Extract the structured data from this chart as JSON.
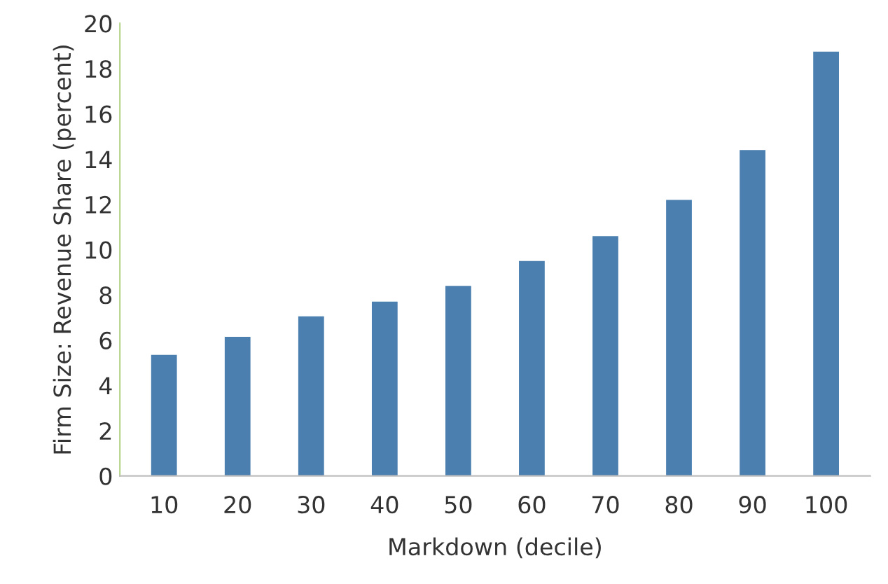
{
  "chart_data": {
    "type": "bar",
    "xlabel": "Markdown (decile)",
    "ylabel": "Firm Size: Revenue Share (percent)",
    "categories": [
      "10",
      "20",
      "30",
      "40",
      "50",
      "60",
      "70",
      "80",
      "90",
      "100"
    ],
    "values": [
      5.35,
      6.15,
      7.05,
      7.7,
      8.4,
      9.5,
      10.6,
      12.2,
      14.4,
      18.75
    ],
    "color": "#4a7fb0",
    "ylim": [
      0,
      20
    ],
    "yticks": [
      0,
      2,
      4,
      6,
      8,
      10,
      12,
      14,
      16,
      18,
      20
    ],
    "grid": false
  }
}
